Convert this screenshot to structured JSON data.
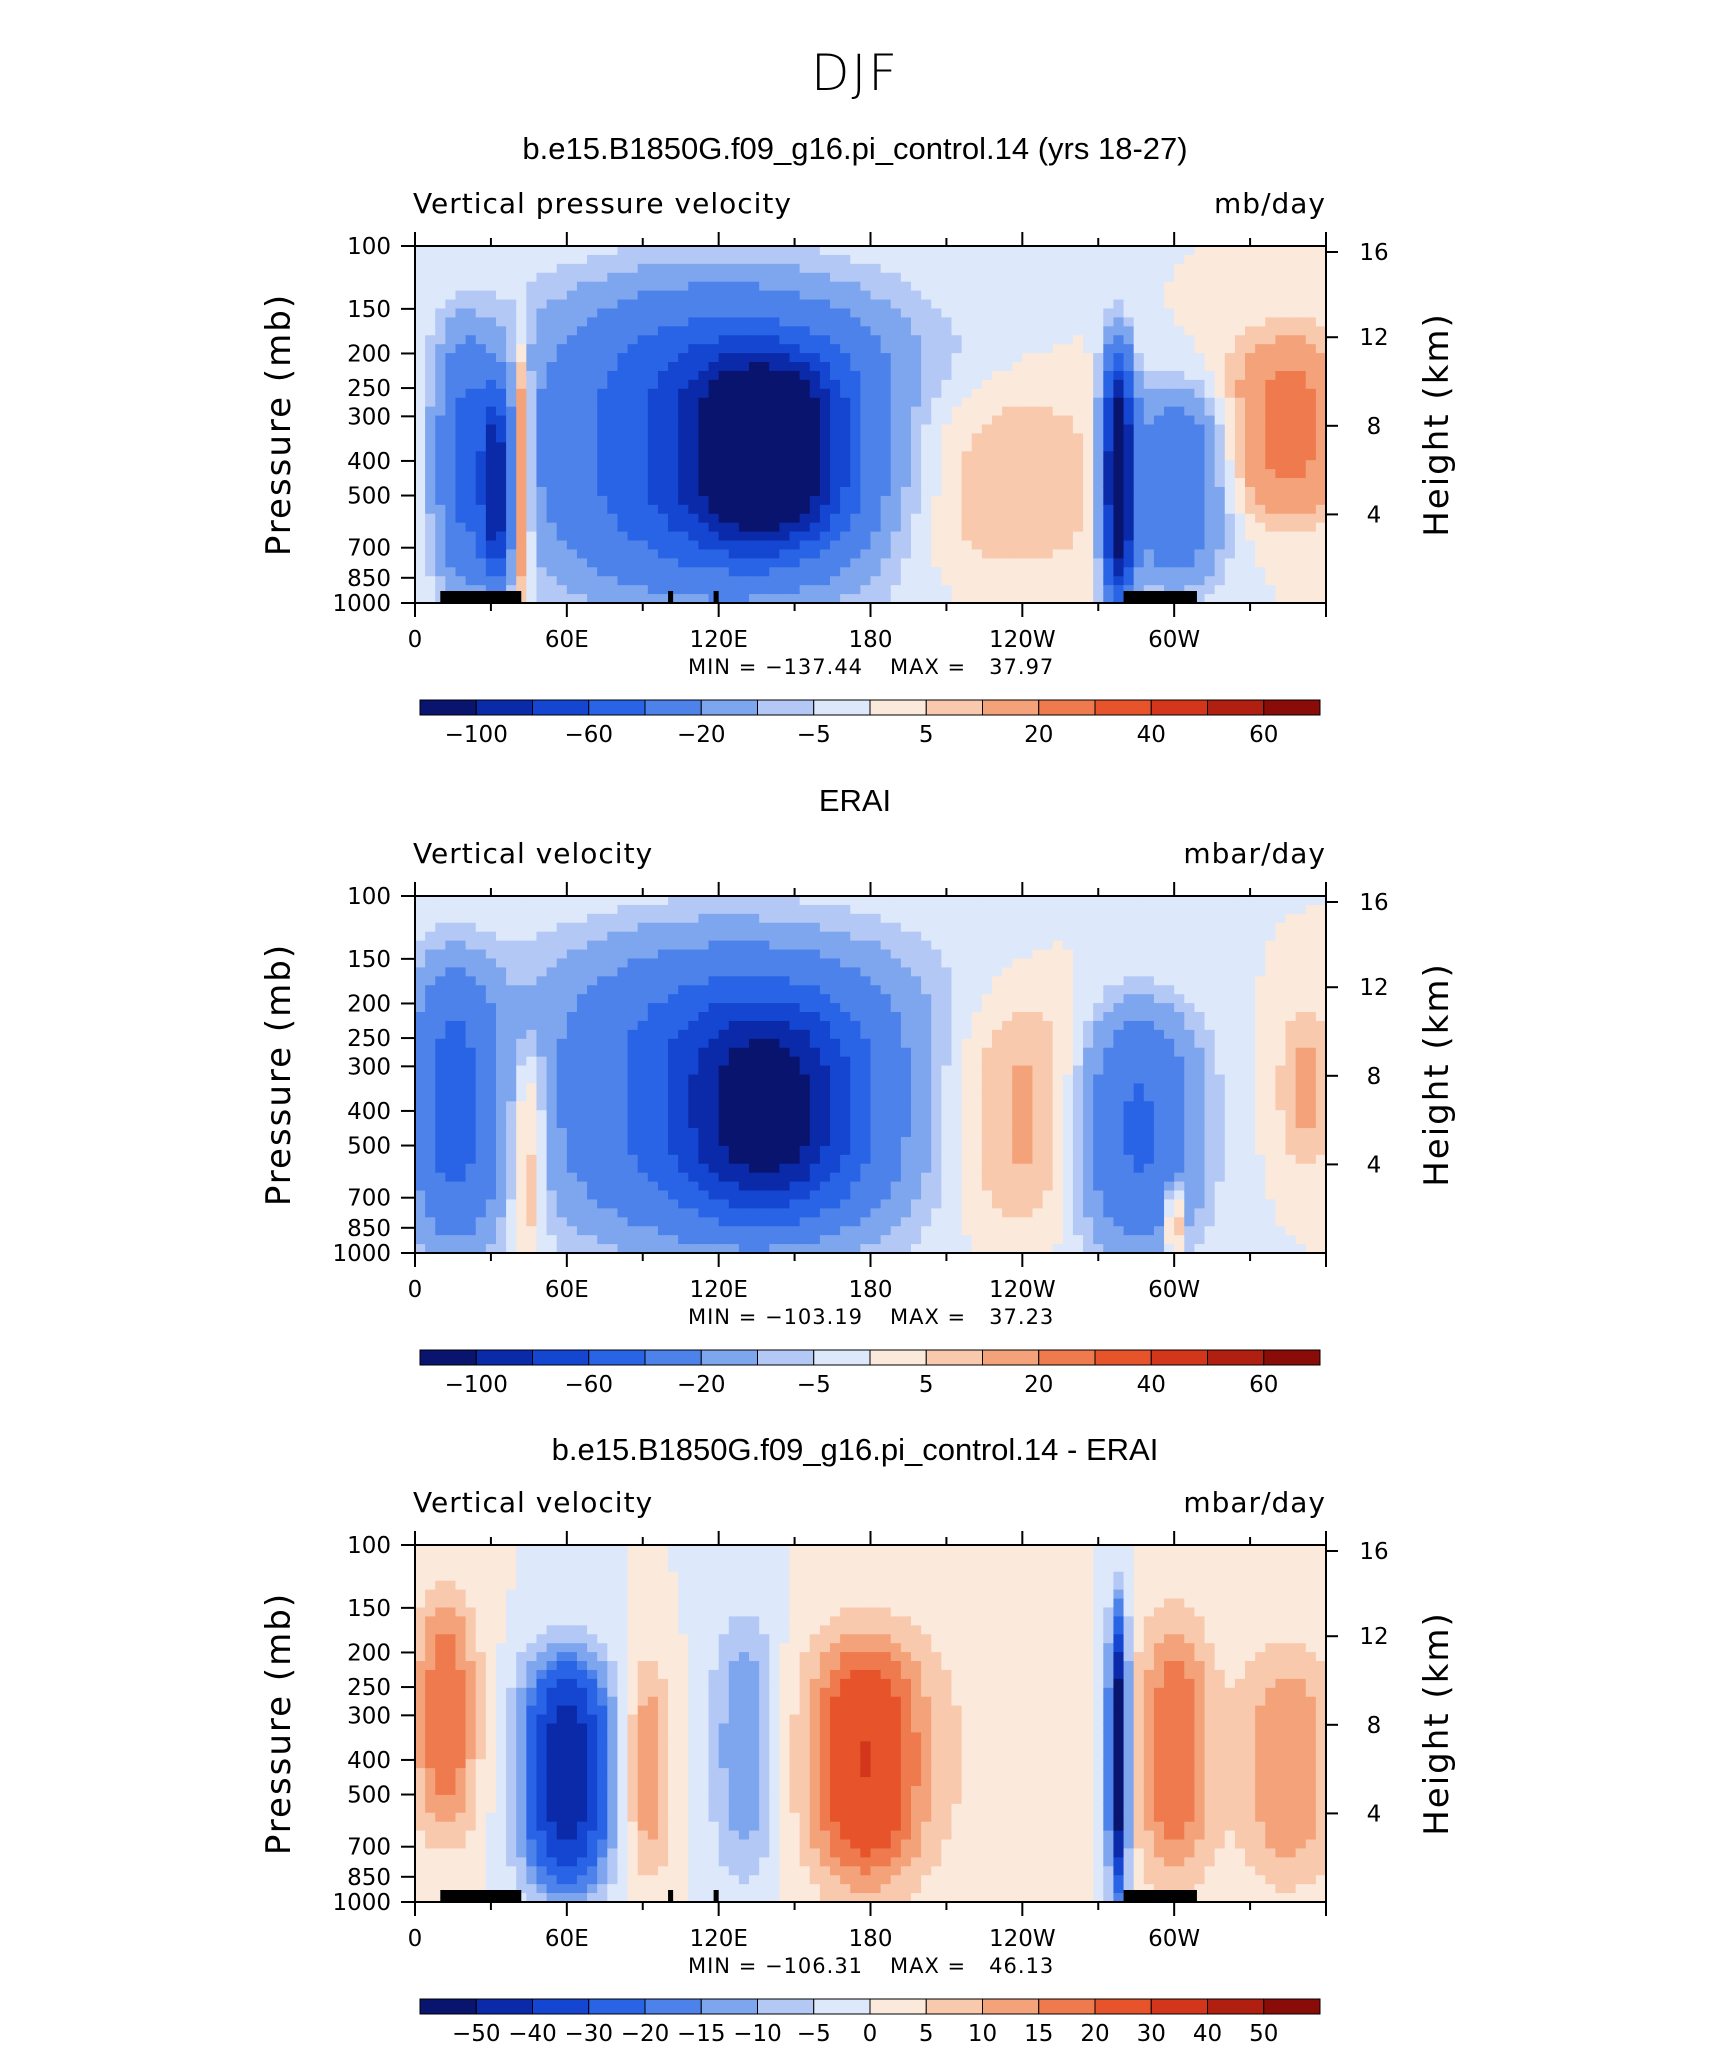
{
  "page_title": "DJF",
  "colors": {
    "base_palette": [
      "#08146e",
      "#0b2aaa",
      "#1446d2",
      "#2a64e6",
      "#4c82ea",
      "#7ea6ef",
      "#b3c8f5",
      "#dde8fa",
      "#fbe9dc",
      "#f9c9ad",
      "#f4a27a",
      "#ee7a4e",
      "#e7532b",
      "#d3361a",
      "#b11f11",
      "#8a0c08"
    ],
    "diff_palette": [
      "#08146e",
      "#0b2aaa",
      "#1446d2",
      "#2a64e6",
      "#4c82ea",
      "#7ea6ef",
      "#b3c8f5",
      "#dde8fa",
      "#fbe9dc",
      "#f9c9ad",
      "#f4a27a",
      "#ee7a4e",
      "#e7532b",
      "#d3361a",
      "#b11f11",
      "#8a0c08"
    ],
    "land": "#000000"
  },
  "chart_data": [
    {
      "type": "heatmap",
      "title": "b.e15.B1850G.f09_g16.pi_control.14 (yrs 18-27)",
      "variable_label": "Vertical pressure velocity",
      "units": "mb/day",
      "ylabel": "Pressure (mb)",
      "ylabel_right": "Height (km)",
      "x_ticks": [
        "0",
        "60E",
        "120E",
        "180",
        "120W",
        "60W"
      ],
      "x_range": [
        0,
        360
      ],
      "y_ticks": [
        "100",
        "150",
        "200",
        "250",
        "300",
        "400",
        "500",
        "700",
        "850",
        "1000"
      ],
      "y_range": [
        1000,
        100
      ],
      "y_scale": "log",
      "y_right_ticks": [
        "16",
        "12",
        "8",
        "4"
      ],
      "min_label": "MIN = −137.44",
      "max_label": "MAX =   37.97",
      "colorbar_labels": [
        "−100",
        "−60",
        "−20",
        "−5",
        "5",
        "20",
        "40",
        "60"
      ],
      "blobs": [
        {
          "x": 20,
          "p_top": 170,
          "p_bot": 950,
          "w": 12,
          "v": -40
        },
        {
          "x": 32,
          "p_top": 250,
          "p_bot": 900,
          "w": 6,
          "v": -80
        },
        {
          "x": 42,
          "p_top": 180,
          "p_bot": 1000,
          "w": 4,
          "v": 35
        },
        {
          "x": 120,
          "p_top": 130,
          "p_bot": 950,
          "w": 70,
          "v": -70
        },
        {
          "x": 140,
          "p_top": 200,
          "p_bot": 700,
          "w": 30,
          "v": -100
        },
        {
          "x": 220,
          "p_top": 230,
          "p_bot": 900,
          "w": 60,
          "v": 12
        },
        {
          "x": 278,
          "p_top": 200,
          "p_bot": 1000,
          "w": 6,
          "v": -137
        },
        {
          "x": 300,
          "p_top": 250,
          "p_bot": 900,
          "w": 20,
          "v": -40
        },
        {
          "x": 345,
          "p_top": 170,
          "p_bot": 600,
          "w": 25,
          "v": 25
        }
      ],
      "land_segments": [
        [
          10,
          42
        ],
        [
          100,
          102
        ],
        [
          118,
          120
        ],
        [
          280,
          309
        ]
      ]
    },
    {
      "type": "heatmap",
      "title": "ERAI",
      "variable_label": "Vertical velocity",
      "units": "mbar/day",
      "ylabel": "Pressure (mb)",
      "ylabel_right": "Height (km)",
      "x_ticks": [
        "0",
        "60E",
        "120E",
        "180",
        "120W",
        "60W"
      ],
      "x_range": [
        0,
        360
      ],
      "y_ticks": [
        "100",
        "150",
        "200",
        "250",
        "300",
        "400",
        "500",
        "700",
        "850",
        "1000"
      ],
      "y_range": [
        1000,
        100
      ],
      "y_scale": "log",
      "y_right_ticks": [
        "16",
        "12",
        "8",
        "4"
      ],
      "min_label": "MIN = −103.19",
      "max_label": "MAX =   37.23",
      "colorbar_labels": [
        "−100",
        "−60",
        "−20",
        "−5",
        "5",
        "20",
        "40",
        "60"
      ],
      "blobs": [
        {
          "x": 15,
          "p_top": 150,
          "p_bot": 1000,
          "w": 18,
          "v": -45
        },
        {
          "x": 45,
          "p_top": 250,
          "p_bot": 1000,
          "w": 8,
          "v": 20
        },
        {
          "x": 125,
          "p_top": 130,
          "p_bot": 950,
          "w": 75,
          "v": -55
        },
        {
          "x": 140,
          "p_top": 200,
          "p_bot": 800,
          "w": 35,
          "v": -70
        },
        {
          "x": 240,
          "p_top": 180,
          "p_bot": 900,
          "w": 40,
          "v": 15
        },
        {
          "x": 285,
          "p_top": 200,
          "p_bot": 1000,
          "w": 25,
          "v": -45
        },
        {
          "x": 300,
          "p_top": 600,
          "p_bot": 1000,
          "w": 3,
          "v": 37
        },
        {
          "x": 352,
          "p_top": 200,
          "p_bot": 600,
          "w": 12,
          "v": 12
        }
      ],
      "land_segments": []
    },
    {
      "type": "heatmap",
      "title": "b.e15.B1850G.f09_g16.pi_control.14 - ERAI",
      "variable_label": "Vertical velocity",
      "units": "mbar/day",
      "ylabel": "Pressure (mb)",
      "ylabel_right": "Height (km)",
      "x_ticks": [
        "0",
        "60E",
        "120E",
        "180",
        "120W",
        "60W"
      ],
      "x_range": [
        0,
        360
      ],
      "y_ticks": [
        "100",
        "150",
        "200",
        "250",
        "300",
        "400",
        "500",
        "700",
        "850",
        "1000"
      ],
      "y_range": [
        1000,
        100
      ],
      "y_scale": "log",
      "y_right_ticks": [
        "16",
        "12",
        "8",
        "4"
      ],
      "min_label": "MIN = −106.31",
      "max_label": "MAX =   46.13",
      "colorbar_labels": [
        "−50",
        "−40",
        "−30",
        "−20",
        "−15",
        "−10",
        "−5",
        "0",
        "5",
        "10",
        "15",
        "20",
        "30",
        "40",
        "50"
      ],
      "blobs": [
        {
          "x": 12,
          "p_top": 130,
          "p_bot": 700,
          "w": 14,
          "v": 20
        },
        {
          "x": 60,
          "p_top": 200,
          "p_bot": 950,
          "w": 18,
          "v": -50
        },
        {
          "x": 92,
          "p_top": 200,
          "p_bot": 900,
          "w": 10,
          "v": 15
        },
        {
          "x": 130,
          "p_top": 150,
          "p_bot": 900,
          "w": 14,
          "v": -15
        },
        {
          "x": 178,
          "p_top": 170,
          "p_bot": 950,
          "w": 25,
          "v": 30
        },
        {
          "x": 220,
          "p_top": 130,
          "p_bot": 950,
          "w": 25,
          "v": 3
        },
        {
          "x": 278,
          "p_top": 150,
          "p_bot": 1000,
          "w": 4,
          "v": -60
        },
        {
          "x": 300,
          "p_top": 150,
          "p_bot": 950,
          "w": 16,
          "v": 20
        },
        {
          "x": 345,
          "p_top": 180,
          "p_bot": 950,
          "w": 22,
          "v": 15
        }
      ],
      "land_segments": [
        [
          10,
          42
        ],
        [
          100,
          102
        ],
        [
          118,
          120
        ],
        [
          280,
          309
        ]
      ]
    }
  ]
}
